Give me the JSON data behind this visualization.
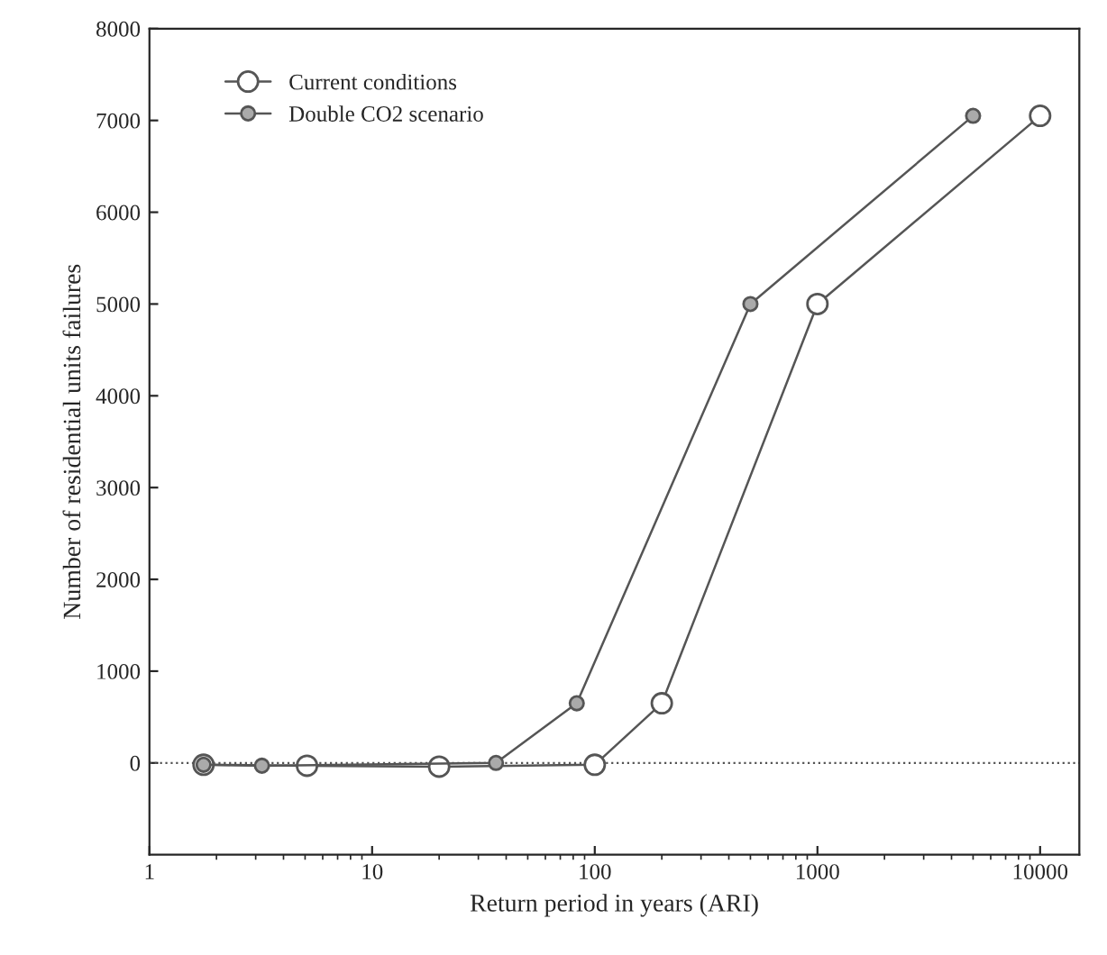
{
  "chart_data": {
    "type": "line",
    "xlabel": "Return period in years (ARI)",
    "ylabel": "Number of residential units failures",
    "log": "x",
    "xlim": [
      1,
      15000
    ],
    "xticks": [
      1,
      10,
      100,
      1000,
      10000
    ],
    "ylim": [
      -1000,
      8000
    ],
    "yticks": [
      0,
      1000,
      2000,
      3000,
      4000,
      5000,
      6000,
      7000,
      8000
    ],
    "series": [
      {
        "name": "Current conditions",
        "color": "#555555",
        "x": [
          1.75,
          5.1,
          20,
          100,
          200,
          1000,
          10000
        ],
        "values": [
          -20,
          -30,
          -40,
          -20,
          650,
          5000,
          7050
        ]
      },
      {
        "name": "Double CO2 scenario",
        "color": "#555555",
        "x": [
          1.75,
          3.2,
          36,
          83,
          500,
          5000
        ],
        "values": [
          -20,
          -30,
          0,
          650,
          5000,
          7050
        ]
      }
    ],
    "ref_lines": [
      {
        "axis": "y",
        "value": 0,
        "line_style": "dotted",
        "color": "#555555"
      }
    ],
    "marker": "circle",
    "line_style": "solid",
    "grid": false,
    "legend": "top left"
  }
}
